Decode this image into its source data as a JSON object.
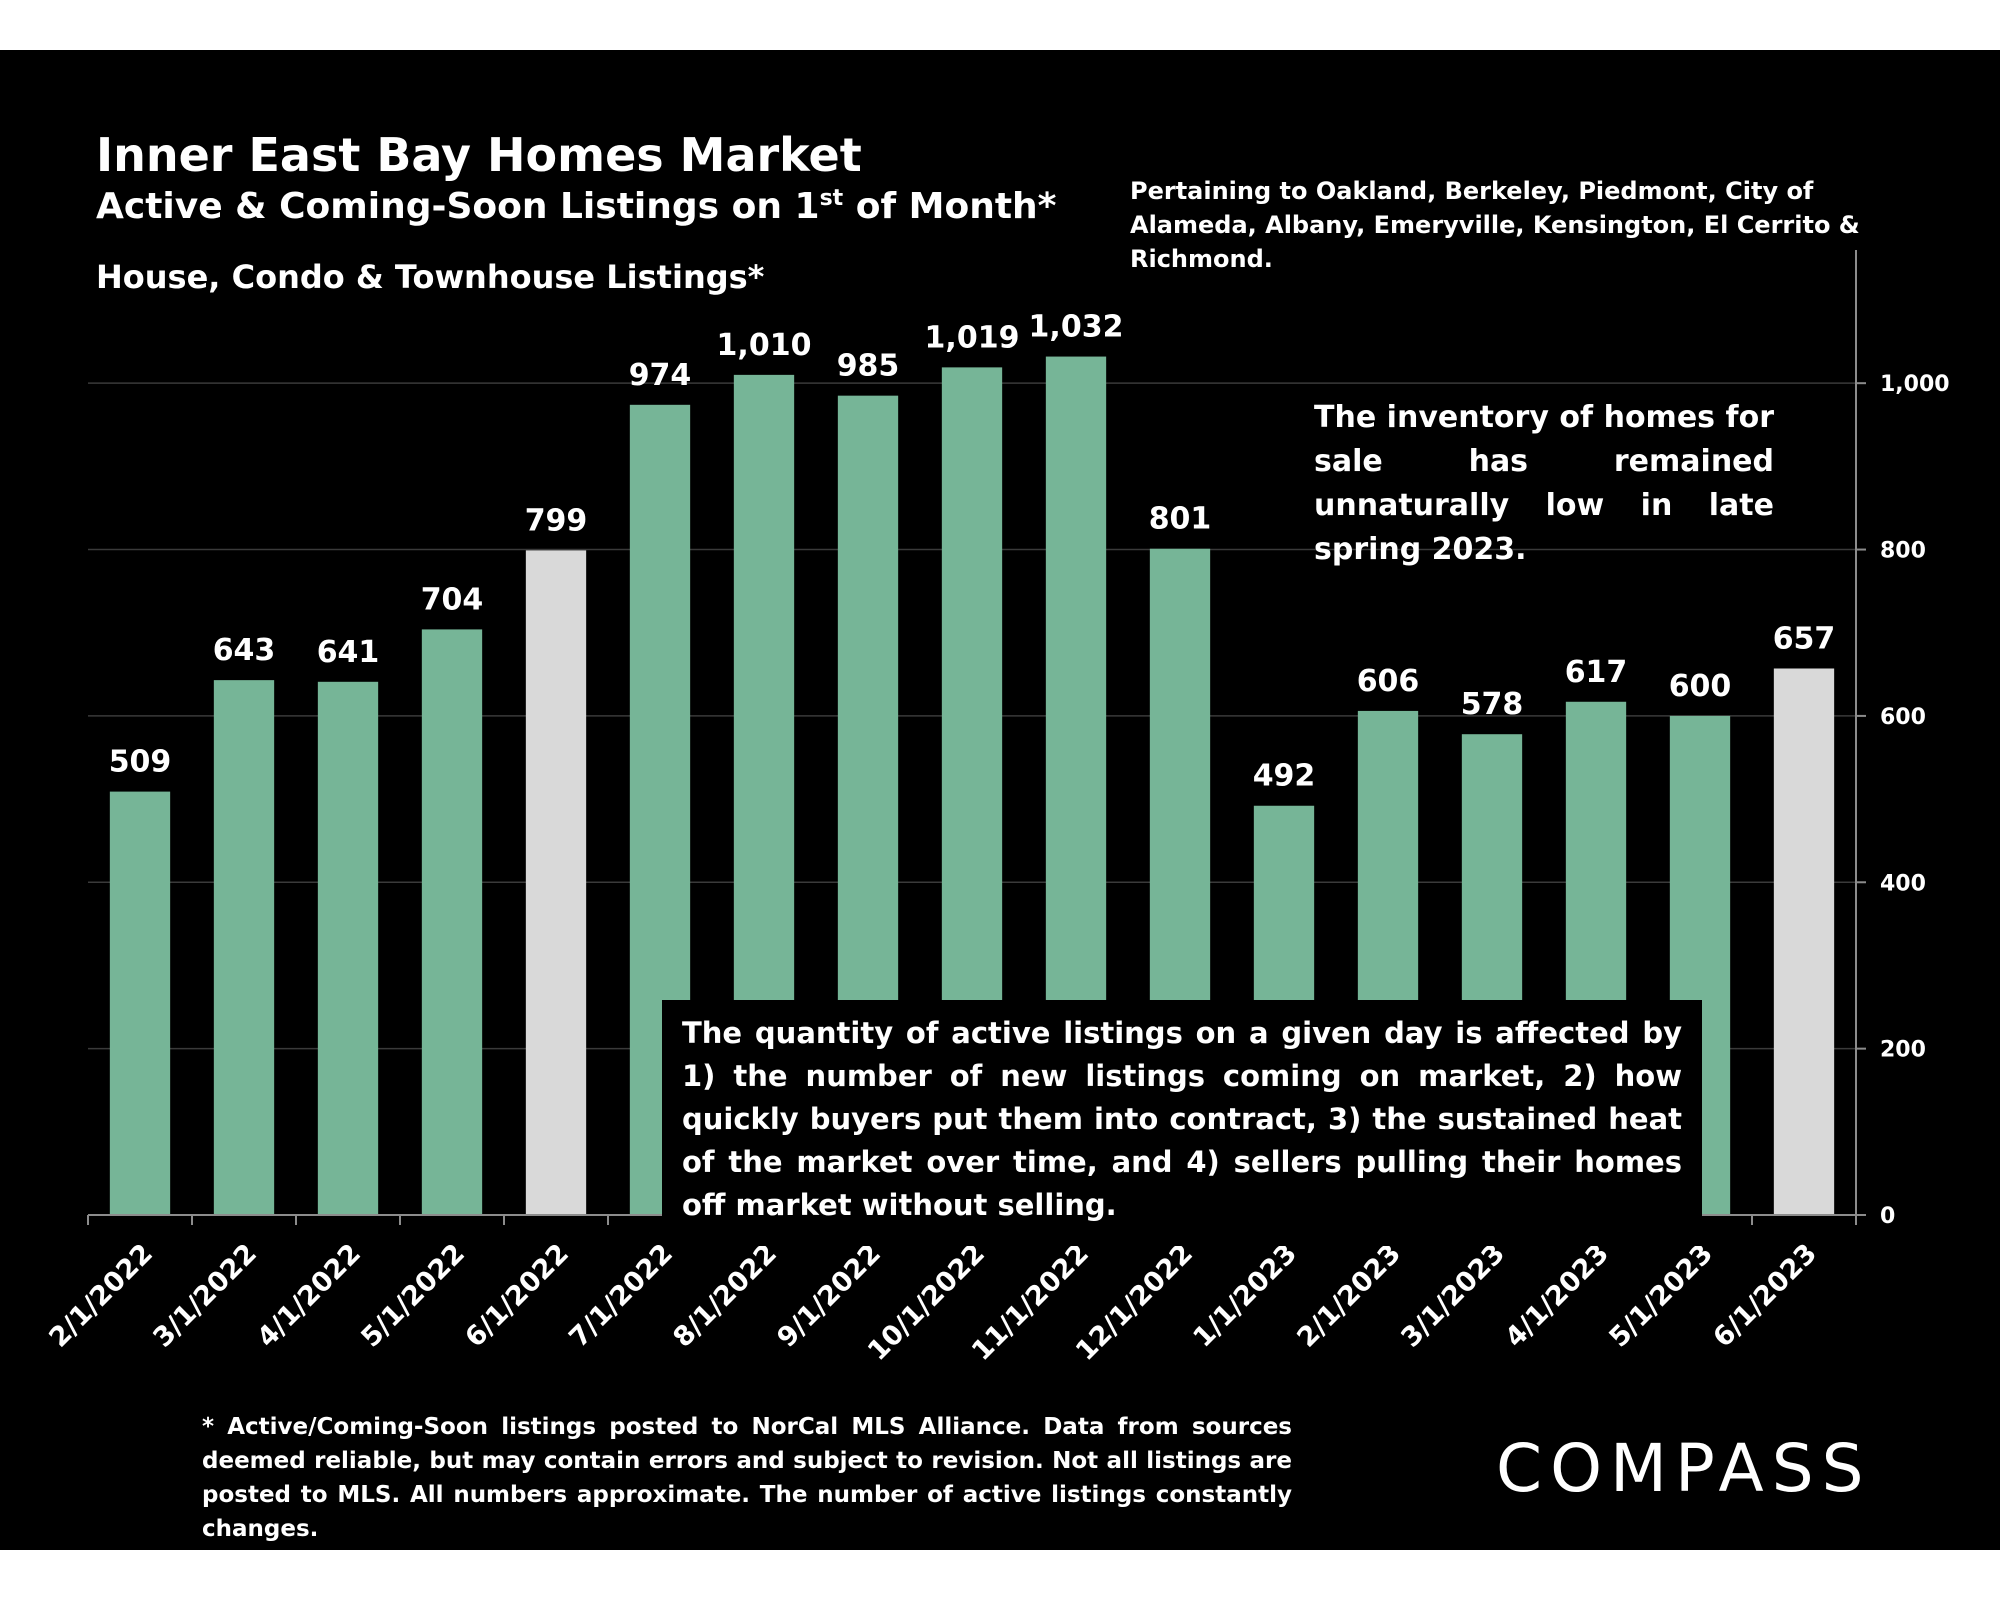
{
  "chart_data": {
    "type": "bar",
    "title": "Inner East Bay Homes Market",
    "subtitle_main": "Active & Coming-Soon Listings on 1",
    "subtitle_sup": "st",
    "subtitle_end": " of Month*",
    "subtitle2": "House, Condo & Townhouse Listings*",
    "categories": [
      "2/1/2022",
      "3/1/2022",
      "4/1/2022",
      "5/1/2022",
      "6/1/2022",
      "7/1/2022",
      "8/1/2022",
      "9/1/2022",
      "10/1/2022",
      "11/1/2022",
      "12/1/2022",
      "1/1/2023",
      "2/1/2023",
      "3/1/2023",
      "4/1/2023",
      "5/1/2023",
      "6/1/2023"
    ],
    "values": [
      509,
      643,
      641,
      704,
      799,
      974,
      1010,
      985,
      1019,
      1032,
      801,
      492,
      606,
      578,
      617,
      600,
      657
    ],
    "value_labels": [
      "509",
      "643",
      "641",
      "704",
      "799",
      "974",
      "1,010",
      "985",
      "1,019",
      "1,032",
      "801",
      "492",
      "606",
      "578",
      "617",
      "600",
      "657"
    ],
    "highlighted": [
      false,
      false,
      false,
      false,
      true,
      false,
      false,
      false,
      false,
      false,
      false,
      false,
      false,
      false,
      false,
      false,
      true
    ],
    "colors": {
      "bar": "#76B597",
      "highlight": "#D9D9D9",
      "background": "#000000",
      "grid": "#3a3a3a",
      "axis": "#8c8c8c"
    },
    "ylim": [
      0,
      1100
    ],
    "y_ticks": [
      0,
      200,
      400,
      600,
      800,
      1000
    ],
    "y_tick_labels": [
      "0",
      "200",
      "400",
      "600",
      "800",
      "1,000"
    ],
    "y_axis_side": "right",
    "grid": true,
    "xlabel": "",
    "ylabel": ""
  },
  "annotations": {
    "pertaining": "Pertaining to Oakland, Berkeley, Piedmont, City of Alameda, Albany, Emeryville, Kensington, El Cerrito & Richmond.",
    "inventory_note": "The inventory of homes for sale has remained unnaturally low in late spring 2023.",
    "quantity_note": "The quantity of active listings on a given day is affected by 1) the number of new listings coming on market, 2) how quickly buyers put them into contract, 3) the sustained heat of the market over time, and 4) sellers pulling their homes off market without selling.",
    "footnote": "* Active/Coming-Soon listings posted to NorCal MLS Alliance.  Data from sources deemed reliable, but may contain errors and subject to revision.  Not all listings are posted to MLS. All numbers approximate. The number of active listings constantly changes."
  },
  "brand": {
    "logo_text": "COMPASS"
  }
}
